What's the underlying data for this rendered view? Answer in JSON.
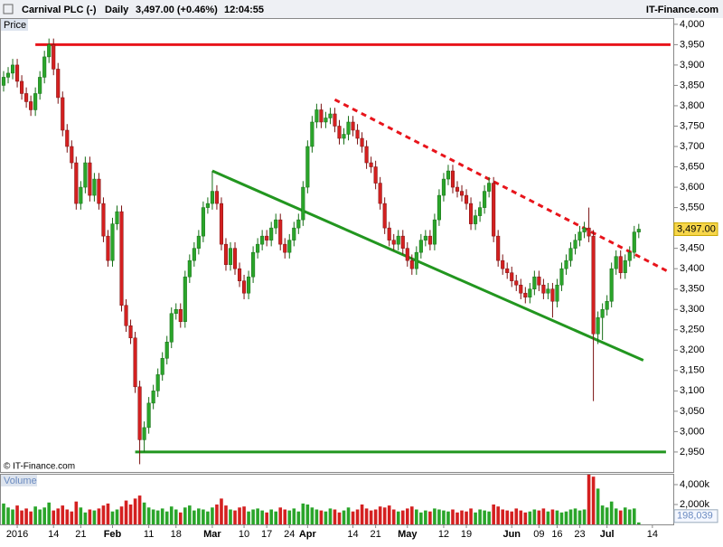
{
  "header": {
    "title": "Carnival PLC (-)",
    "period": "Daily",
    "quote": "3,497.00 (+0.46%)",
    "time": "12:04:55",
    "brand": "IT-Finance.com"
  },
  "chart_data": [
    {
      "type": "candlestick",
      "label": "Price",
      "copyright": "© IT-Finance.com",
      "up_color": "#2aa52a",
      "down_color": "#d42020",
      "categories": [
        null,
        null,
        null,
        "2016",
        null,
        null,
        null,
        null,
        null,
        null,
        null,
        "14",
        null,
        null,
        null,
        null,
        null,
        "21",
        null,
        null,
        null,
        null,
        null,
        null,
        "Feb",
        null,
        null,
        null,
        null,
        null,
        null,
        null,
        "11",
        null,
        null,
        null,
        null,
        null,
        "18",
        null,
        null,
        null,
        null,
        null,
        null,
        null,
        "Mar",
        null,
        null,
        null,
        null,
        null,
        null,
        "10",
        null,
        null,
        null,
        null,
        "17",
        null,
        null,
        null,
        null,
        "24",
        null,
        null,
        null,
        "Apr",
        null,
        null,
        null,
        null,
        null,
        null,
        null,
        null,
        null,
        "14",
        null,
        null,
        null,
        null,
        "21",
        null,
        null,
        null,
        null,
        null,
        null,
        "May",
        null,
        null,
        null,
        null,
        null,
        null,
        null,
        "12",
        null,
        null,
        null,
        null,
        "19",
        null,
        null,
        null,
        null,
        null,
        null,
        null,
        null,
        null,
        "Jun",
        null,
        null,
        null,
        null,
        null,
        "09",
        null,
        null,
        null,
        "16",
        null,
        null,
        null,
        null,
        "23",
        null,
        null,
        null,
        null,
        null,
        "Jul",
        null,
        null,
        null,
        null,
        null,
        null,
        null,
        null,
        null,
        "14"
      ],
      "open": [
        3850,
        3870,
        3880,
        3900,
        3860,
        3830,
        3810,
        3790,
        3830,
        3870,
        3920,
        3950,
        3890,
        3820,
        3740,
        3700,
        3660,
        3560,
        3600,
        3660,
        3580,
        3620,
        3560,
        3480,
        3420,
        3510,
        3540,
        3310,
        3260,
        3230,
        3110,
        2980,
        3010,
        3070,
        3100,
        3140,
        3180,
        3220,
        3290,
        3300,
        3270,
        3380,
        3420,
        3450,
        3480,
        3550,
        3560,
        3590,
        3560,
        3460,
        3410,
        3450,
        3400,
        3370,
        3340,
        3380,
        3440,
        3460,
        3480,
        3470,
        3500,
        3520,
        3460,
        3440,
        3470,
        3500,
        3520,
        3600,
        3700,
        3760,
        3790,
        3760,
        3770,
        3780,
        3750,
        3720,
        3730,
        3760,
        3740,
        3720,
        3700,
        3660,
        3650,
        3610,
        3560,
        3500,
        3470,
        3460,
        3480,
        3450,
        3420,
        3400,
        3440,
        3470,
        3480,
        3460,
        3520,
        3580,
        3620,
        3640,
        3600,
        3590,
        3580,
        3560,
        3510,
        3530,
        3550,
        3590,
        3610,
        3480,
        3420,
        3400,
        3390,
        3370,
        3360,
        3340,
        3330,
        3350,
        3380,
        3360,
        3340,
        3350,
        3320,
        3360,
        3400,
        3420,
        3450,
        3470,
        3490,
        3500,
        3480,
        3240,
        3280,
        3300,
        3320,
        3400,
        3430,
        3390,
        3420,
        3440,
        3490,
        null,
        null,
        null
      ],
      "high": [
        3885,
        3895,
        3915,
        3915,
        3875,
        3845,
        3825,
        3845,
        3885,
        3935,
        3965,
        3965,
        3905,
        3835,
        3755,
        3715,
        3675,
        3615,
        3675,
        3675,
        3635,
        3635,
        3575,
        3495,
        3525,
        3555,
        3555,
        3325,
        3275,
        3245,
        3125,
        3025,
        3085,
        3115,
        3155,
        3195,
        3235,
        3305,
        3315,
        3315,
        3395,
        3435,
        3465,
        3495,
        3565,
        3575,
        3640,
        3605,
        3575,
        3475,
        3465,
        3465,
        3415,
        3385,
        3395,
        3455,
        3475,
        3495,
        3495,
        3515,
        3535,
        3535,
        3475,
        3485,
        3515,
        3535,
        3615,
        3715,
        3775,
        3805,
        3805,
        3785,
        3795,
        3795,
        3765,
        3745,
        3775,
        3775,
        3755,
        3735,
        3715,
        3675,
        3665,
        3625,
        3575,
        3515,
        3485,
        3495,
        3495,
        3465,
        3435,
        3455,
        3485,
        3495,
        3495,
        3535,
        3595,
        3635,
        3655,
        3655,
        3615,
        3605,
        3595,
        3575,
        3545,
        3565,
        3605,
        3625,
        3625,
        3495,
        3435,
        3415,
        3405,
        3385,
        3375,
        3355,
        3365,
        3395,
        3395,
        3375,
        3365,
        3365,
        3375,
        3415,
        3435,
        3465,
        3485,
        3505,
        3515,
        3550,
        3495,
        3295,
        3315,
        3335,
        3415,
        3445,
        3445,
        3435,
        3455,
        3505,
        3510,
        null,
        null,
        null
      ],
      "low": [
        3835,
        3855,
        3865,
        3845,
        3815,
        3795,
        3775,
        3775,
        3815,
        3855,
        3905,
        3875,
        3805,
        3725,
        3685,
        3645,
        3545,
        3545,
        3585,
        3565,
        3565,
        3545,
        3465,
        3405,
        3405,
        3495,
        3295,
        3245,
        3215,
        3095,
        2920,
        2950,
        2995,
        3055,
        3085,
        3125,
        3165,
        3205,
        3275,
        3255,
        3255,
        3365,
        3405,
        3435,
        3465,
        3535,
        3545,
        3545,
        3445,
        3395,
        3395,
        3385,
        3355,
        3325,
        3325,
        3365,
        3425,
        3445,
        3455,
        3455,
        3485,
        3445,
        3425,
        3425,
        3455,
        3485,
        3505,
        3585,
        3685,
        3745,
        3745,
        3745,
        3755,
        3735,
        3705,
        3705,
        3715,
        3725,
        3705,
        3685,
        3645,
        3635,
        3595,
        3545,
        3485,
        3455,
        3445,
        3445,
        3435,
        3405,
        3385,
        3385,
        3425,
        3455,
        3445,
        3445,
        3505,
        3565,
        3605,
        3585,
        3575,
        3565,
        3545,
        3495,
        3495,
        3515,
        3535,
        3575,
        3465,
        3405,
        3385,
        3375,
        3355,
        3345,
        3325,
        3315,
        3315,
        3335,
        3345,
        3325,
        3325,
        3280,
        3305,
        3345,
        3385,
        3405,
        3435,
        3455,
        3475,
        3465,
        3075,
        3215,
        3225,
        3285,
        3305,
        3385,
        3375,
        3375,
        3405,
        3425,
        3475,
        null,
        null,
        null
      ],
      "close": [
        3870,
        3880,
        3900,
        3860,
        3830,
        3810,
        3790,
        3830,
        3870,
        3920,
        3950,
        3890,
        3820,
        3740,
        3700,
        3660,
        3560,
        3600,
        3660,
        3580,
        3620,
        3560,
        3480,
        3420,
        3510,
        3540,
        3310,
        3260,
        3230,
        3110,
        2980,
        3010,
        3070,
        3100,
        3140,
        3180,
        3220,
        3290,
        3300,
        3270,
        3380,
        3420,
        3450,
        3480,
        3550,
        3560,
        3590,
        3560,
        3460,
        3410,
        3450,
        3400,
        3370,
        3340,
        3380,
        3440,
        3460,
        3480,
        3470,
        3500,
        3520,
        3460,
        3440,
        3470,
        3500,
        3520,
        3600,
        3700,
        3760,
        3790,
        3760,
        3770,
        3780,
        3750,
        3720,
        3730,
        3760,
        3740,
        3720,
        3700,
        3660,
        3650,
        3610,
        3560,
        3500,
        3470,
        3460,
        3480,
        3450,
        3420,
        3400,
        3440,
        3470,
        3480,
        3460,
        3520,
        3580,
        3620,
        3640,
        3600,
        3590,
        3580,
        3560,
        3510,
        3530,
        3550,
        3590,
        3610,
        3480,
        3420,
        3400,
        3390,
        3370,
        3360,
        3340,
        3330,
        3350,
        3380,
        3360,
        3340,
        3350,
        3320,
        3360,
        3400,
        3420,
        3450,
        3470,
        3490,
        3500,
        3480,
        3240,
        3280,
        3300,
        3320,
        3400,
        3430,
        3390,
        3420,
        3440,
        3490,
        3497,
        null,
        null,
        null
      ],
      "last_price": {
        "value": 3497,
        "label": "3,497.00"
      },
      "lines": [
        {
          "color": "#e8141b",
          "dashed": false,
          "x": [
            7,
            147
          ],
          "y": [
            3950,
            3950
          ]
        },
        {
          "color": "#e8141b",
          "dashed": true,
          "x": [
            73,
            147
          ],
          "y": [
            3815,
            3390
          ]
        },
        {
          "color": "#22961f",
          "dashed": false,
          "x": [
            46,
            141
          ],
          "y": [
            3640,
            3175
          ]
        },
        {
          "color": "#22961f",
          "dashed": false,
          "x": [
            29,
            146
          ],
          "y": [
            2950,
            2950
          ]
        }
      ],
      "ylim": [
        2901,
        4013
      ],
      "yticks": [
        {
          "value": 4000,
          "label": "4,000"
        },
        {
          "value": 3950,
          "label": "3,950"
        },
        {
          "value": 3900,
          "label": "3,900"
        },
        {
          "value": 3850,
          "label": "3,850"
        },
        {
          "value": 3800,
          "label": "3,800"
        },
        {
          "value": 3750,
          "label": "3,750"
        },
        {
          "value": 3700,
          "label": "3,700"
        },
        {
          "value": 3650,
          "label": "3,650"
        },
        {
          "value": 3600,
          "label": "3,600"
        },
        {
          "value": 3550,
          "label": "3,550"
        },
        {
          "value": 3500,
          "label": "3,500"
        },
        {
          "value": 3450,
          "label": "3,450"
        },
        {
          "value": 3400,
          "label": "3,400"
        },
        {
          "value": 3350,
          "label": "3,350"
        },
        {
          "value": 3300,
          "label": "3,300"
        },
        {
          "value": 3250,
          "label": "3,250"
        },
        {
          "value": 3200,
          "label": "3,200"
        },
        {
          "value": 3150,
          "label": "3,150"
        },
        {
          "value": 3100,
          "label": "3,100"
        },
        {
          "value": 3050,
          "label": "3,050"
        },
        {
          "value": 3000,
          "label": "3,000"
        },
        {
          "value": 2950,
          "label": "2,950"
        }
      ]
    },
    {
      "type": "volume",
      "label": "Volume",
      "values": [
        2100000,
        1700000,
        1500000,
        1900000,
        1400000,
        1600000,
        1300000,
        1800000,
        1500000,
        1700000,
        2200000,
        1400000,
        1600000,
        1900000,
        1500000,
        1300000,
        2300000,
        1700000,
        1200000,
        1500000,
        1400000,
        1600000,
        1900000,
        2100000,
        1300000,
        1500000,
        1800000,
        2400000,
        2000000,
        2600000,
        2900000,
        2200000,
        1700000,
        1500000,
        1400000,
        1600000,
        1300000,
        1800000,
        1500000,
        1200000,
        1700000,
        1900000,
        1400000,
        1600000,
        1500000,
        1300000,
        1700000,
        2000000,
        2600000,
        1900000,
        1500000,
        1400000,
        1700000,
        1800000,
        1300000,
        1500000,
        1600000,
        1400000,
        1200000,
        1500000,
        1300000,
        1700000,
        1500000,
        1400000,
        1600000,
        1300000,
        2100000,
        2000000,
        1700000,
        1500000,
        1400000,
        1300000,
        1600000,
        1500000,
        1200000,
        1400000,
        1700000,
        1300000,
        1500000,
        2000000,
        1600000,
        1400000,
        1500000,
        1800000,
        1700000,
        1900000,
        1500000,
        1300000,
        1400000,
        1600000,
        1800000,
        1500000,
        1200000,
        1400000,
        1300000,
        1600000,
        1500000,
        1400000,
        1300000,
        1500000,
        1200000,
        1400000,
        1300000,
        1600000,
        1200000,
        1500000,
        1400000,
        1300000,
        2000000,
        1800000,
        1500000,
        1400000,
        1300000,
        1600000,
        1400000,
        1200000,
        1300000,
        1500000,
        1400000,
        1600000,
        1300000,
        1500000,
        1400000,
        1200000,
        1300000,
        1500000,
        1600000,
        1400000,
        1500000,
        5000000,
        4800000,
        3600000,
        1900000,
        1700000,
        2300000,
        1600000,
        1400000,
        1700000,
        1500000,
        1600000,
        198039,
        null,
        null,
        null
      ],
      "last_volume": {
        "value": 198039,
        "label": "198,039"
      },
      "ylim": [
        0,
        5000000
      ],
      "yticks": [
        {
          "value": 4000000,
          "label": "4,000k"
        },
        {
          "value": 2000000,
          "label": "2,000k"
        }
      ]
    }
  ]
}
